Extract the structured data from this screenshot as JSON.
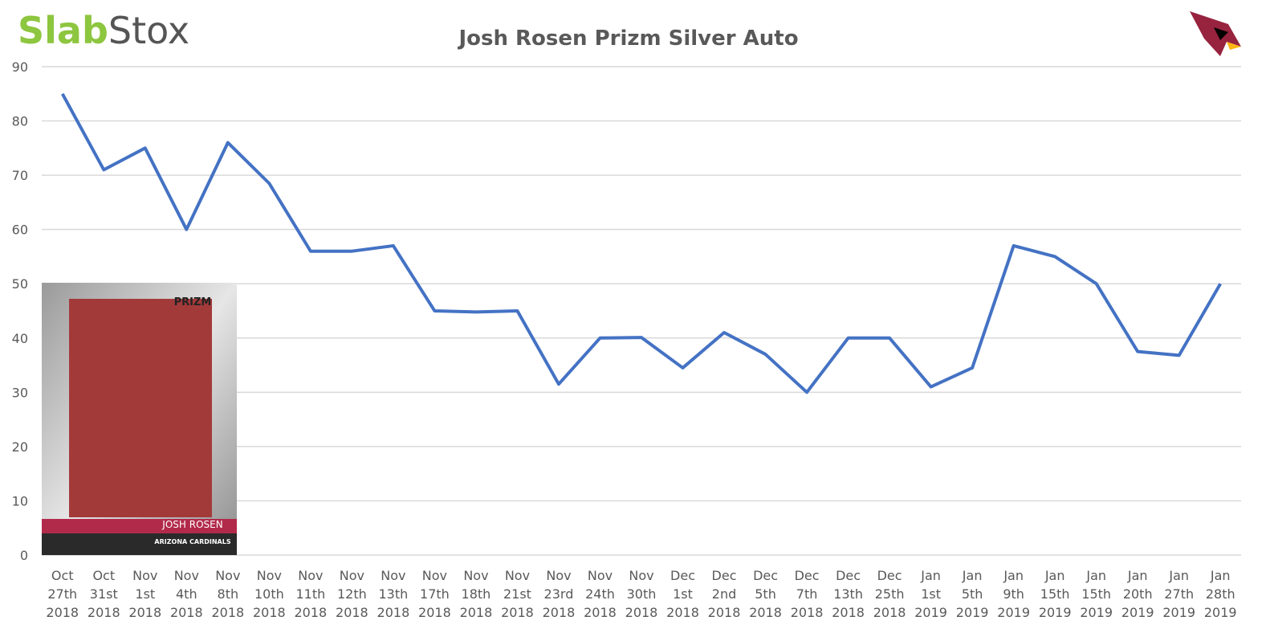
{
  "logo": {
    "first": "Slab",
    "second": "Stox"
  },
  "card": {
    "brand": "PRIZM",
    "name": "JOSH ROSEN",
    "team": "ARIZONA CARDINALS"
  },
  "chart_data": {
    "type": "line",
    "title": "Josh Rosen Prizm Silver Auto",
    "categories": [
      [
        "Oct",
        "27th",
        "2018"
      ],
      [
        "Oct",
        "31st",
        "2018"
      ],
      [
        "Nov",
        "1st",
        "2018"
      ],
      [
        "Nov",
        "4th",
        "2018"
      ],
      [
        "Nov",
        "8th",
        "2018"
      ],
      [
        "Nov",
        "10th",
        "2018"
      ],
      [
        "Nov",
        "11th",
        "2018"
      ],
      [
        "Nov",
        "12th",
        "2018"
      ],
      [
        "Nov",
        "13th",
        "2018"
      ],
      [
        "Nov",
        "17th",
        "2018"
      ],
      [
        "Nov",
        "18th",
        "2018"
      ],
      [
        "Nov",
        "21st",
        "2018"
      ],
      [
        "Nov",
        "23rd",
        "2018"
      ],
      [
        "Nov",
        "24th",
        "2018"
      ],
      [
        "Nov",
        "30th",
        "2018"
      ],
      [
        "Dec",
        "1st",
        "2018"
      ],
      [
        "Dec",
        "2nd",
        "2018"
      ],
      [
        "Dec",
        "5th",
        "2018"
      ],
      [
        "Dec",
        "7th",
        "2018"
      ],
      [
        "Dec",
        "13th",
        "2018"
      ],
      [
        "Dec",
        "25th",
        "2018"
      ],
      [
        "Jan",
        "1st",
        "2019"
      ],
      [
        "Jan",
        "5th",
        "2019"
      ],
      [
        "Jan",
        "9th",
        "2019"
      ],
      [
        "Jan",
        "15th",
        "2019"
      ],
      [
        "Jan",
        "15th",
        "2019"
      ],
      [
        "Jan",
        "20th",
        "2019"
      ],
      [
        "Jan",
        "27th",
        "2019"
      ],
      [
        "Jan",
        "28th",
        "2019"
      ]
    ],
    "values": [
      85,
      71,
      75,
      60,
      76,
      68.5,
      56,
      56,
      57,
      45,
      44.8,
      45,
      31.5,
      40,
      40.1,
      34.5,
      41,
      37,
      30,
      40,
      40,
      31,
      34.5,
      57,
      55,
      50,
      37.5,
      36.8,
      50
    ],
    "color": "#4472c4",
    "ylim": [
      0,
      90
    ],
    "yticks": [
      0,
      10,
      20,
      30,
      40,
      50,
      60,
      70,
      80,
      90
    ],
    "grid": true
  }
}
